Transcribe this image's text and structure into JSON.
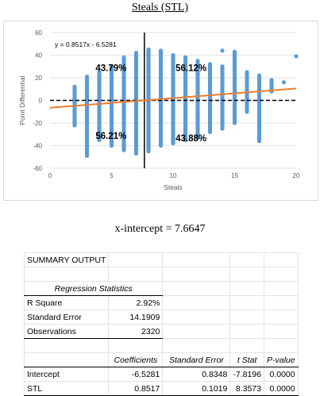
{
  "chart_data": {
    "type": "scatter",
    "title": "Steals (STL)",
    "xlabel": "Steals",
    "ylabel": "Point Differential",
    "xlim": [
      0,
      20
    ],
    "ylim": [
      -60,
      60
    ],
    "xticks": [
      0,
      5,
      10,
      15,
      20
    ],
    "yticks": [
      -60,
      -40,
      -20,
      0,
      20,
      40,
      60
    ],
    "grid": true,
    "point_color": "#5b9bd5",
    "trend_color": "#ed7d31",
    "equation": "y = 0.8517x - 6.5281",
    "trendline": {
      "slope": 0.8517,
      "intercept": -6.5281
    },
    "vertical_line_x": 7.6647,
    "horizontal_line_y": 0,
    "quadrant_labels": [
      "43.79%",
      "56.12%",
      "56.21%",
      "43.88%"
    ],
    "columns": [
      {
        "x": 2,
        "ymin": -22,
        "ymax": 12
      },
      {
        "x": 3,
        "ymin": -48,
        "ymax": 21
      },
      {
        "x": 4,
        "ymin": -35,
        "ymax": 25
      },
      {
        "x": 5,
        "ymin": -40,
        "ymax": 30
      },
      {
        "x": 6,
        "ymin": -44,
        "ymax": 38
      },
      {
        "x": 7,
        "ymin": -47,
        "ymax": 42
      },
      {
        "x": 8,
        "ymin": -45,
        "ymax": 45
      },
      {
        "x": 9,
        "ymin": -40,
        "ymax": 44
      },
      {
        "x": 10,
        "ymin": -38,
        "ymax": 40
      },
      {
        "x": 11,
        "ymin": -35,
        "ymax": 38
      },
      {
        "x": 12,
        "ymin": -33,
        "ymax": 35
      },
      {
        "x": 13,
        "ymin": -28,
        "ymax": 32
      },
      {
        "x": 14,
        "ymin": -25,
        "ymax": 30
      },
      {
        "x": 15,
        "ymin": -20,
        "ymax": 43
      },
      {
        "x": 16,
        "ymin": -10,
        "ymax": 25
      },
      {
        "x": 17,
        "ymin": -36,
        "ymax": 22
      },
      {
        "x": 18,
        "ymin": 8,
        "ymax": 18
      }
    ],
    "extra_points": [
      {
        "x": 17,
        "y": 18
      },
      {
        "x": 18,
        "y": 15
      },
      {
        "x": 19,
        "y": 16
      },
      {
        "x": 20,
        "y": 39
      },
      {
        "x": 15,
        "y": 40
      },
      {
        "x": 14,
        "y": 44
      },
      {
        "x": 3,
        "y": -49
      },
      {
        "x": 17,
        "y": 0
      }
    ]
  },
  "x_intercept_text": "x-intercept = 7.6647",
  "summary": {
    "title": "SUMMARY OUTPUT",
    "reg_stats_header": "Regression Statistics",
    "stats": [
      {
        "label": "R Square",
        "value": "2.92%"
      },
      {
        "label": "Standard Error",
        "value": "14.1909"
      },
      {
        "label": "Observations",
        "value": "2320"
      }
    ],
    "coef_headers": [
      "Coefficients",
      "Standard Error",
      "t Stat",
      "P-value"
    ],
    "coefs": [
      {
        "label": "Intercept",
        "values": [
          "-6.5281",
          "0.8348",
          "-7.8196",
          "0.0000"
        ]
      },
      {
        "label": "STL",
        "values": [
          "0.8517",
          "0.1019",
          "8.3573",
          "0.0000"
        ]
      }
    ]
  }
}
